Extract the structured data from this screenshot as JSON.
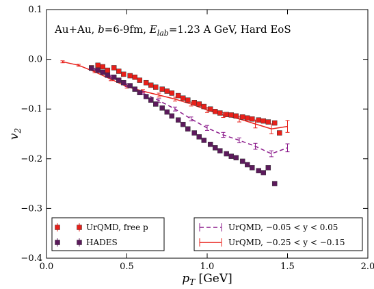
{
  "chart_data": {
    "type": "scatter",
    "annotation": "Au+Au, b=6-9fm, E_lab=1.23 A GeV, Hard EoS",
    "annotation_parts": {
      "prefix": "Au+Au, ",
      "b_sym": "b",
      "b_text": "=6-9fm, ",
      "e_sym": "E",
      "e_sub": "lab",
      "suffix": "=1.23 A GeV, Hard EoS"
    },
    "xlabel": "p_T [GeV]",
    "xlabel_parts": {
      "sym": "p",
      "sub": "T",
      "rest": " [GeV]"
    },
    "ylabel": "v_2",
    "ylabel_parts": {
      "sym": "v",
      "sub": "2"
    },
    "xlim": [
      0.0,
      2.0
    ],
    "ylim": [
      -0.4,
      0.1
    ],
    "xticks": [
      0.0,
      0.5,
      1.0,
      1.5,
      2.0
    ],
    "xtick_labels": [
      "0.0",
      "0.5",
      "1.0",
      "1.5",
      "2.0"
    ],
    "yticks": [
      -0.4,
      -0.3,
      -0.2,
      -0.1,
      0.0,
      0.1
    ],
    "ytick_labels": [
      "−0.4",
      "−0.3",
      "−0.2",
      "−0.1",
      "0.0",
      "0.1"
    ],
    "grid": false,
    "legends": [
      {
        "placement": "bottom-left",
        "entries": [
          {
            "label": "UrQMD, free p",
            "series": 2
          },
          {
            "label": "HADES",
            "series": 3
          }
        ]
      },
      {
        "placement": "bottom-right",
        "entries": [
          {
            "label": "UrQMD, −0.05 < y < 0.05",
            "series": 1
          },
          {
            "label": "UrQMD, −0.25 < y < −0.15",
            "series": 0
          }
        ]
      }
    ],
    "series": [
      {
        "name": "UrQMD, −0.25 < y < −0.15",
        "kind": "line",
        "dash": false,
        "color": "#e8201a",
        "x": [
          0.1,
          0.2,
          0.3,
          0.4,
          0.5,
          0.6,
          0.7,
          0.8,
          0.9,
          1.0,
          1.1,
          1.2,
          1.3,
          1.4,
          1.5
        ],
        "y": [
          -0.005,
          -0.012,
          -0.025,
          -0.04,
          -0.055,
          -0.064,
          -0.072,
          -0.08,
          -0.09,
          -0.102,
          -0.112,
          -0.12,
          -0.13,
          -0.14,
          -0.135
        ],
        "err": [
          0.002,
          0.002,
          0.002,
          0.003,
          0.003,
          0.003,
          0.004,
          0.004,
          0.004,
          0.005,
          0.005,
          0.006,
          0.008,
          0.01,
          0.012
        ]
      },
      {
        "name": "UrQMD, −0.05 < y < 0.05",
        "kind": "line",
        "dash": true,
        "color": "#8b1a8b",
        "x": [
          0.3,
          0.4,
          0.5,
          0.6,
          0.7,
          0.8,
          0.9,
          1.0,
          1.1,
          1.2,
          1.3,
          1.4,
          1.5
        ],
        "y": [
          -0.02,
          -0.035,
          -0.052,
          -0.068,
          -0.083,
          -0.1,
          -0.12,
          -0.138,
          -0.152,
          -0.163,
          -0.175,
          -0.19,
          -0.178
        ],
        "err": [
          0.002,
          0.003,
          0.003,
          0.003,
          0.004,
          0.004,
          0.004,
          0.005,
          0.005,
          0.005,
          0.006,
          0.006,
          0.008
        ]
      },
      {
        "name": "UrQMD, free p",
        "kind": "markers",
        "marker": "square",
        "color": "#e8201a",
        "x": [
          0.28,
          0.32,
          0.35,
          0.38,
          0.42,
          0.45,
          0.48,
          0.52,
          0.55,
          0.58,
          0.62,
          0.65,
          0.68,
          0.72,
          0.75,
          0.78,
          0.82,
          0.85,
          0.88,
          0.92,
          0.95,
          0.98,
          1.02,
          1.05,
          1.08,
          1.12,
          1.15,
          1.18,
          1.22,
          1.25,
          1.28,
          1.32,
          1.35,
          1.38,
          1.42,
          1.45
        ],
        "y": [
          -0.017,
          -0.012,
          -0.015,
          -0.022,
          -0.017,
          -0.024,
          -0.03,
          -0.033,
          -0.036,
          -0.042,
          -0.047,
          -0.052,
          -0.056,
          -0.06,
          -0.064,
          -0.068,
          -0.073,
          -0.078,
          -0.082,
          -0.087,
          -0.09,
          -0.095,
          -0.1,
          -0.105,
          -0.108,
          -0.111,
          -0.112,
          -0.114,
          -0.116,
          -0.118,
          -0.12,
          -0.122,
          -0.124,
          -0.126,
          -0.128,
          -0.148
        ]
      },
      {
        "name": "HADES",
        "kind": "markers",
        "marker": "square",
        "color": "#5c1a5c",
        "x": [
          0.28,
          0.32,
          0.35,
          0.38,
          0.42,
          0.45,
          0.48,
          0.52,
          0.55,
          0.58,
          0.62,
          0.65,
          0.68,
          0.72,
          0.75,
          0.78,
          0.82,
          0.85,
          0.88,
          0.92,
          0.95,
          0.98,
          1.02,
          1.05,
          1.08,
          1.12,
          1.15,
          1.18,
          1.22,
          1.25,
          1.28,
          1.32,
          1.35,
          1.38,
          1.42
        ],
        "y": [
          -0.018,
          -0.022,
          -0.026,
          -0.032,
          -0.036,
          -0.042,
          -0.047,
          -0.053,
          -0.06,
          -0.067,
          -0.075,
          -0.082,
          -0.09,
          -0.098,
          -0.106,
          -0.114,
          -0.122,
          -0.131,
          -0.14,
          -0.148,
          -0.156,
          -0.163,
          -0.171,
          -0.178,
          -0.184,
          -0.19,
          -0.195,
          -0.198,
          -0.205,
          -0.212,
          -0.218,
          -0.224,
          -0.228,
          -0.218,
          -0.25
        ]
      }
    ]
  }
}
